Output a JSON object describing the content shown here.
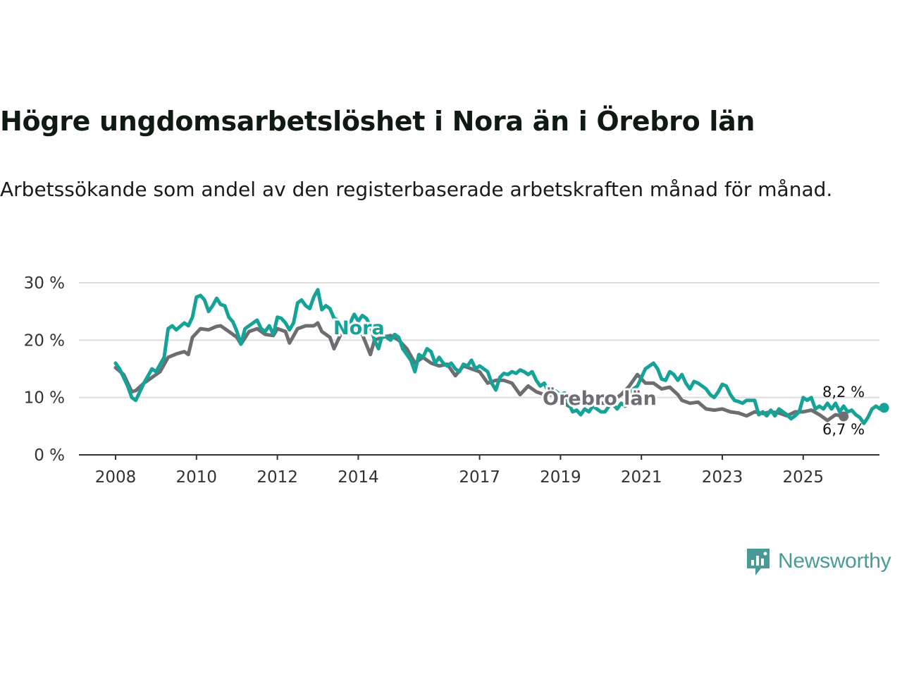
{
  "title": "Högre ungdomsarbetslöshet i Nora än i Örebro län",
  "subtitle": "Arbetssökande som andel av den registerbaserade arbetskraften månad för månad.",
  "brand": {
    "name": "Newsworthy",
    "icon": "newsworthy-logo-icon"
  },
  "colors": {
    "nora": "#14a396",
    "orebro": "#6d6e71",
    "grid": "#dcdcdc",
    "axis": "#333333"
  },
  "chart_data": {
    "type": "line",
    "title": "Högre ungdomsarbetslöshet i Nora än i Örebro län",
    "xlabel": "",
    "ylabel": "",
    "ylim": [
      0,
      30
    ],
    "xlim": [
      2007.75,
      2026.5
    ],
    "y_ticks": [
      {
        "value": 0,
        "label": "0 %"
      },
      {
        "value": 10,
        "label": "10 %"
      },
      {
        "value": 20,
        "label": "20 %"
      },
      {
        "value": 30,
        "label": "30 %"
      }
    ],
    "x_ticks": [
      {
        "value": 2008,
        "label": "2008"
      },
      {
        "value": 2010,
        "label": "2010"
      },
      {
        "value": 2012,
        "label": "2012"
      },
      {
        "value": 2014,
        "label": "2014"
      },
      {
        "value": 2017,
        "label": "2017"
      },
      {
        "value": 2019,
        "label": "2019"
      },
      {
        "value": 2021,
        "label": "2021"
      },
      {
        "value": 2023,
        "label": "2023"
      },
      {
        "value": 2025,
        "label": "2025"
      }
    ],
    "grid": true,
    "series": [
      {
        "name": "Örebro län",
        "color": "#6d6e71",
        "end_label": "6,7 %",
        "points": [
          [
            2008.0,
            15.2
          ],
          [
            2008.2,
            14.0
          ],
          [
            2008.4,
            11.0
          ],
          [
            2008.5,
            11.2
          ],
          [
            2008.7,
            12.5
          ],
          [
            2008.9,
            13.5
          ],
          [
            2009.1,
            14.5
          ],
          [
            2009.3,
            17.0
          ],
          [
            2009.5,
            17.6
          ],
          [
            2009.7,
            18.0
          ],
          [
            2009.8,
            17.5
          ],
          [
            2009.9,
            20.5
          ],
          [
            2010.1,
            22.0
          ],
          [
            2010.3,
            21.8
          ],
          [
            2010.5,
            22.4
          ],
          [
            2010.6,
            22.5
          ],
          [
            2010.8,
            21.5
          ],
          [
            2011.0,
            20.5
          ],
          [
            2011.1,
            19.3
          ],
          [
            2011.3,
            21.5
          ],
          [
            2011.5,
            22.0
          ],
          [
            2011.7,
            21.0
          ],
          [
            2011.9,
            20.8
          ],
          [
            2012.0,
            22.0
          ],
          [
            2012.2,
            21.5
          ],
          [
            2012.3,
            19.5
          ],
          [
            2012.5,
            22.0
          ],
          [
            2012.7,
            22.5
          ],
          [
            2012.9,
            22.5
          ],
          [
            2013.0,
            23.0
          ],
          [
            2013.1,
            21.5
          ],
          [
            2013.3,
            20.5
          ],
          [
            2013.4,
            18.5
          ],
          [
            2013.6,
            21.5
          ],
          [
            2013.8,
            22.0
          ],
          [
            2014.0,
            21.8
          ],
          [
            2014.1,
            21.0
          ],
          [
            2014.3,
            17.5
          ],
          [
            2014.4,
            20.0
          ],
          [
            2014.6,
            20.5
          ],
          [
            2014.8,
            20.8
          ],
          [
            2015.0,
            20.0
          ],
          [
            2015.2,
            18.5
          ],
          [
            2015.4,
            16.0
          ],
          [
            2015.6,
            17.0
          ],
          [
            2015.8,
            16.0
          ],
          [
            2016.0,
            15.5
          ],
          [
            2016.2,
            15.8
          ],
          [
            2016.4,
            13.8
          ],
          [
            2016.6,
            15.5
          ],
          [
            2016.8,
            15.0
          ],
          [
            2017.0,
            14.5
          ],
          [
            2017.2,
            12.5
          ],
          [
            2017.4,
            13.0
          ],
          [
            2017.6,
            13.0
          ],
          [
            2017.8,
            12.5
          ],
          [
            2018.0,
            10.5
          ],
          [
            2018.2,
            12.0
          ],
          [
            2018.4,
            11.0
          ],
          [
            2018.6,
            10.5
          ],
          [
            2018.8,
            10.5
          ],
          [
            2019.0,
            9.5
          ],
          [
            2019.2,
            8.5
          ],
          [
            2019.3,
            9.5
          ],
          [
            2019.5,
            9.0
          ],
          [
            2019.7,
            9.5
          ],
          [
            2019.9,
            9.0
          ],
          [
            2020.1,
            9.0
          ],
          [
            2020.3,
            9.5
          ],
          [
            2020.5,
            10.5
          ],
          [
            2020.7,
            12.0
          ],
          [
            2020.9,
            14.0
          ],
          [
            2021.1,
            12.5
          ],
          [
            2021.3,
            12.5
          ],
          [
            2021.5,
            11.5
          ],
          [
            2021.7,
            11.8
          ],
          [
            2021.9,
            10.5
          ],
          [
            2022.0,
            9.5
          ],
          [
            2022.2,
            9.0
          ],
          [
            2022.4,
            9.2
          ],
          [
            2022.6,
            8.0
          ],
          [
            2022.8,
            7.8
          ],
          [
            2023.0,
            8.0
          ],
          [
            2023.2,
            7.5
          ],
          [
            2023.4,
            7.3
          ],
          [
            2023.6,
            6.8
          ],
          [
            2023.8,
            7.5
          ],
          [
            2024.0,
            7.2
          ],
          [
            2024.2,
            7.5
          ],
          [
            2024.4,
            7.3
          ],
          [
            2024.6,
            6.8
          ],
          [
            2024.8,
            7.5
          ],
          [
            2025.0,
            7.5
          ],
          [
            2025.2,
            7.8
          ],
          [
            2025.4,
            7.0
          ],
          [
            2025.5,
            6.5
          ],
          [
            2025.6,
            6.0
          ],
          [
            2025.8,
            7.0
          ],
          [
            2026.0,
            6.7
          ]
        ]
      },
      {
        "name": "Nora",
        "color": "#14a396",
        "end_label": "8,2 %",
        "points": [
          [
            2008.0,
            16.0
          ],
          [
            2008.1,
            15.0
          ],
          [
            2008.3,
            12.0
          ],
          [
            2008.4,
            10.0
          ],
          [
            2008.5,
            9.5
          ],
          [
            2008.7,
            12.5
          ],
          [
            2008.9,
            15.0
          ],
          [
            2009.0,
            14.5
          ],
          [
            2009.2,
            17.0
          ],
          [
            2009.3,
            22.0
          ],
          [
            2009.4,
            22.5
          ],
          [
            2009.5,
            21.8
          ],
          [
            2009.7,
            23.0
          ],
          [
            2009.8,
            22.5
          ],
          [
            2009.9,
            24.0
          ],
          [
            2010.0,
            27.5
          ],
          [
            2010.1,
            27.8
          ],
          [
            2010.2,
            27.0
          ],
          [
            2010.3,
            25.0
          ],
          [
            2010.4,
            26.0
          ],
          [
            2010.5,
            27.3
          ],
          [
            2010.6,
            26.2
          ],
          [
            2010.7,
            26.0
          ],
          [
            2010.8,
            24.0
          ],
          [
            2010.9,
            23.2
          ],
          [
            2011.0,
            21.5
          ],
          [
            2011.1,
            19.3
          ],
          [
            2011.2,
            22.0
          ],
          [
            2011.4,
            23.0
          ],
          [
            2011.5,
            23.5
          ],
          [
            2011.6,
            22.0
          ],
          [
            2011.7,
            21.5
          ],
          [
            2011.8,
            22.5
          ],
          [
            2011.9,
            21.0
          ],
          [
            2012.0,
            24.0
          ],
          [
            2012.1,
            23.8
          ],
          [
            2012.2,
            23.0
          ],
          [
            2012.3,
            21.8
          ],
          [
            2012.4,
            23.0
          ],
          [
            2012.5,
            26.5
          ],
          [
            2012.6,
            27.0
          ],
          [
            2012.7,
            26.0
          ],
          [
            2012.8,
            25.5
          ],
          [
            2012.9,
            27.5
          ],
          [
            2013.0,
            28.8
          ],
          [
            2013.1,
            25.3
          ],
          [
            2013.2,
            26.0
          ],
          [
            2013.3,
            25.5
          ],
          [
            2013.4,
            23.8
          ],
          [
            2013.5,
            23.5
          ],
          [
            2013.6,
            22.8
          ],
          [
            2013.7,
            23.5
          ],
          [
            2013.8,
            23.0
          ],
          [
            2013.9,
            24.5
          ],
          [
            2014.0,
            23.3
          ],
          [
            2014.1,
            24.3
          ],
          [
            2014.2,
            23.8
          ],
          [
            2014.3,
            22.5
          ],
          [
            2014.4,
            20.0
          ],
          [
            2014.5,
            18.5
          ],
          [
            2014.6,
            21.0
          ],
          [
            2014.7,
            20.5
          ],
          [
            2014.8,
            20.0
          ],
          [
            2014.9,
            21.0
          ],
          [
            2015.0,
            20.5
          ],
          [
            2015.1,
            18.5
          ],
          [
            2015.2,
            17.5
          ],
          [
            2015.3,
            16.5
          ],
          [
            2015.4,
            14.5
          ],
          [
            2015.5,
            17.5
          ],
          [
            2015.6,
            17.0
          ],
          [
            2015.7,
            18.5
          ],
          [
            2015.8,
            18.0
          ],
          [
            2015.9,
            16.0
          ],
          [
            2016.0,
            17.0
          ],
          [
            2016.1,
            16.0
          ],
          [
            2016.2,
            15.5
          ],
          [
            2016.3,
            16.0
          ],
          [
            2016.4,
            15.0
          ],
          [
            2016.5,
            14.5
          ],
          [
            2016.6,
            15.8
          ],
          [
            2016.7,
            15.5
          ],
          [
            2016.8,
            16.5
          ],
          [
            2016.9,
            15.0
          ],
          [
            2017.0,
            15.5
          ],
          [
            2017.2,
            14.5
          ],
          [
            2017.3,
            12.5
          ],
          [
            2017.4,
            11.3
          ],
          [
            2017.5,
            13.5
          ],
          [
            2017.6,
            14.2
          ],
          [
            2017.7,
            14.0
          ],
          [
            2017.8,
            14.5
          ],
          [
            2017.9,
            14.2
          ],
          [
            2018.0,
            14.8
          ],
          [
            2018.1,
            14.5
          ],
          [
            2018.2,
            14.0
          ],
          [
            2018.3,
            14.5
          ],
          [
            2018.4,
            13.0
          ],
          [
            2018.5,
            12.0
          ],
          [
            2018.6,
            12.5
          ],
          [
            2018.7,
            11.0
          ],
          [
            2018.8,
            11.5
          ],
          [
            2018.9,
            11.0
          ],
          [
            2019.0,
            10.5
          ],
          [
            2019.1,
            10.8
          ],
          [
            2019.2,
            9.0
          ],
          [
            2019.3,
            7.5
          ],
          [
            2019.4,
            7.8
          ],
          [
            2019.5,
            7.0
          ],
          [
            2019.6,
            8.0
          ],
          [
            2019.7,
            7.5
          ],
          [
            2019.8,
            8.5
          ],
          [
            2019.9,
            8.0
          ],
          [
            2020.0,
            7.5
          ],
          [
            2020.1,
            7.5
          ],
          [
            2020.2,
            8.5
          ],
          [
            2020.3,
            8.8
          ],
          [
            2020.4,
            8.0
          ],
          [
            2020.5,
            9.0
          ],
          [
            2020.6,
            8.5
          ],
          [
            2020.7,
            10.0
          ],
          [
            2020.8,
            11.5
          ],
          [
            2020.9,
            12.0
          ],
          [
            2021.0,
            13.5
          ],
          [
            2021.1,
            15.0
          ],
          [
            2021.2,
            15.5
          ],
          [
            2021.3,
            16.0
          ],
          [
            2021.4,
            15.0
          ],
          [
            2021.5,
            13.2
          ],
          [
            2021.6,
            13.0
          ],
          [
            2021.7,
            14.5
          ],
          [
            2021.8,
            14.0
          ],
          [
            2021.9,
            13.0
          ],
          [
            2022.0,
            14.0
          ],
          [
            2022.1,
            12.5
          ],
          [
            2022.2,
            11.5
          ],
          [
            2022.3,
            12.8
          ],
          [
            2022.4,
            12.5
          ],
          [
            2022.5,
            12.0
          ],
          [
            2022.6,
            11.5
          ],
          [
            2022.7,
            10.5
          ],
          [
            2022.8,
            10.0
          ],
          [
            2022.9,
            11.0
          ],
          [
            2023.0,
            12.3
          ],
          [
            2023.1,
            12.0
          ],
          [
            2023.2,
            10.5
          ],
          [
            2023.3,
            9.5
          ],
          [
            2023.4,
            9.3
          ],
          [
            2023.5,
            9.0
          ],
          [
            2023.6,
            9.5
          ],
          [
            2023.7,
            9.5
          ],
          [
            2023.8,
            9.5
          ],
          [
            2023.9,
            7.0
          ],
          [
            2024.0,
            7.5
          ],
          [
            2024.1,
            6.8
          ],
          [
            2024.2,
            7.8
          ],
          [
            2024.3,
            6.8
          ],
          [
            2024.4,
            8.0
          ],
          [
            2024.5,
            7.5
          ],
          [
            2024.6,
            7.0
          ],
          [
            2024.7,
            6.3
          ],
          [
            2024.8,
            6.8
          ],
          [
            2024.9,
            7.5
          ],
          [
            2025.0,
            10.0
          ],
          [
            2025.1,
            9.5
          ],
          [
            2025.2,
            10.0
          ],
          [
            2025.3,
            8.0
          ],
          [
            2025.4,
            8.5
          ],
          [
            2025.5,
            8.0
          ],
          [
            2025.6,
            9.0
          ],
          [
            2025.7,
            8.0
          ],
          [
            2025.8,
            9.0
          ],
          [
            2025.9,
            7.5
          ],
          [
            2026.0,
            8.5
          ],
          [
            2026.1,
            7.5
          ],
          [
            2026.2,
            7.8
          ],
          [
            2026.3,
            7.0
          ],
          [
            2026.4,
            6.5
          ],
          [
            2026.5,
            5.5
          ],
          [
            2026.6,
            6.5
          ],
          [
            2026.7,
            8.0
          ],
          [
            2026.8,
            8.5
          ],
          [
            2026.9,
            8.0
          ],
          [
            2027.0,
            8.2
          ]
        ]
      }
    ]
  }
}
